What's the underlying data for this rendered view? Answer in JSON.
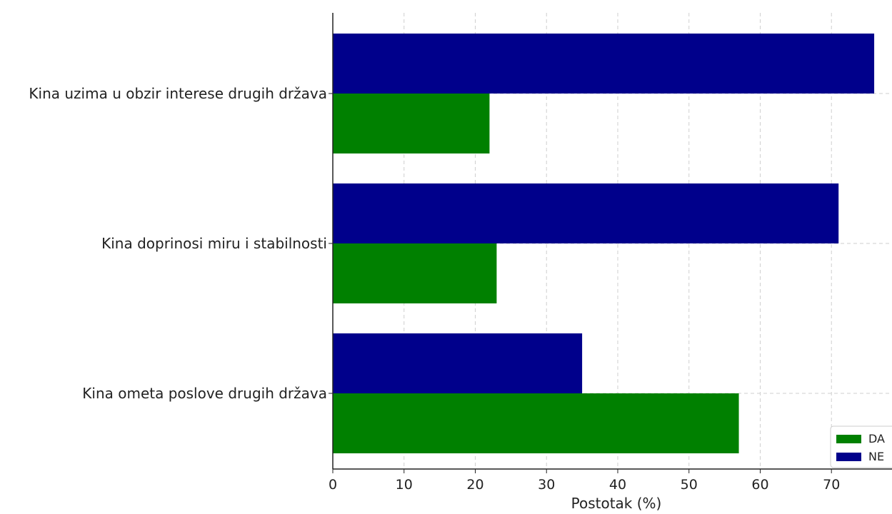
{
  "chart_data": {
    "type": "bar",
    "orientation": "horizontal",
    "categories": [
      "Kina uzima u obzir interese drugih država",
      "Kina doprinosi miru i stabilnosti",
      "Kina ometa poslove drugih država"
    ],
    "series": [
      {
        "name": "DA",
        "color": "#008000",
        "values": [
          22,
          23,
          57
        ]
      },
      {
        "name": "NE",
        "color": "#00008b",
        "values": [
          76,
          71,
          35
        ]
      }
    ],
    "xlabel": "Postotak (%)",
    "ylabel": "",
    "xlim": [
      0,
      78.5
    ],
    "xticks": [
      0,
      10,
      20,
      30,
      40,
      50,
      60,
      70
    ],
    "grid": true,
    "legend_position": "bottom-right"
  }
}
